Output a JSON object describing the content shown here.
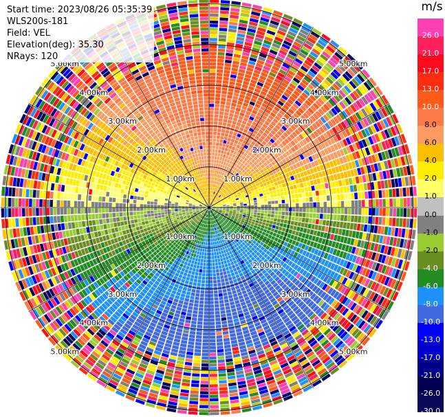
{
  "header": {
    "start_time": "Start time: 2023/08/26 05:35:39",
    "station": "WLS200s-181",
    "field": "Field: VEL",
    "elevation": "Elevation(deg): 35.30",
    "nrays": "NRays: 120"
  },
  "colorbar": {
    "unit": "m/s",
    "ticks": [
      "26.0",
      "21.0",
      "17.0",
      "13.0",
      "10.0",
      "8.0",
      "6.0",
      "4.0",
      "2.0",
      "1.0",
      "0.0",
      "-1.0",
      "-2.0",
      "-4.0",
      "-6.0",
      "-8.0",
      "-10.0",
      "-13.0",
      "-17.0",
      "-21.0",
      "-26.0",
      "-30.0"
    ],
    "colors": [
      "#ff3fb2",
      "#ff1f5a",
      "#ff0a1a",
      "#ff2c10",
      "#ff5a1c",
      "#ff7a48",
      "#ff9b60",
      "#ffbf00",
      "#ffee00",
      "#ffff66",
      "#c0c0c0",
      "#808080",
      "#9acd32",
      "#6b8e23",
      "#228b22",
      "#1e90ff",
      "#4169e1",
      "#0000ff",
      "#0000cd",
      "#00008b",
      "#000050",
      "#0a0a5a"
    ]
  },
  "range_rings": {
    "labels": [
      "1.00km",
      "2.00km",
      "3.00km",
      "4.00km",
      "5.00km"
    ]
  }
}
